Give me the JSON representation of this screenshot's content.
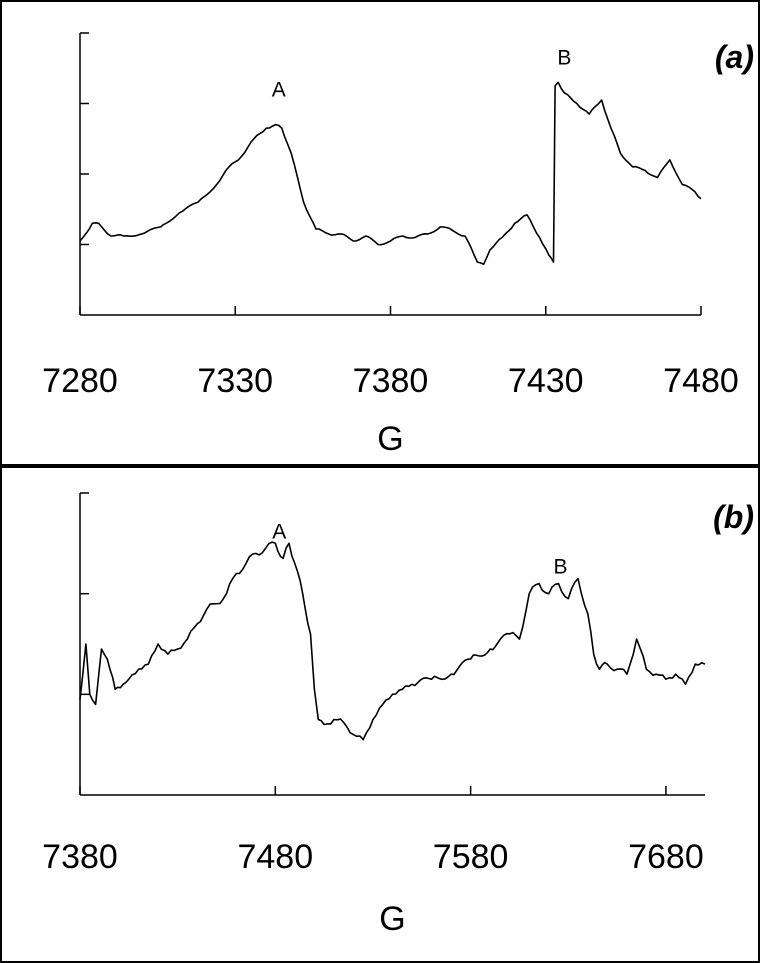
{
  "chart_data": [
    {
      "type": "line",
      "panel_label": "(a)",
      "xlabel": "G",
      "ylabel": "",
      "xlim": [
        7280,
        7480
      ],
      "ylim": [
        0,
        4
      ],
      "grid": false,
      "x_ticks": [
        7280,
        7330,
        7380,
        7430,
        7480
      ],
      "tick_labels": [
        "7280",
        "7330",
        "7380",
        "7430",
        "7480"
      ],
      "y_tick_values": [
        1,
        2,
        3,
        4
      ],
      "annotations": [
        {
          "text": "A",
          "x": 7344,
          "y": 3.1
        },
        {
          "text": "B",
          "x": 7436,
          "y": 3.55
        }
      ],
      "series": [
        {
          "x": [
            7280,
            7284,
            7286,
            7290,
            7294,
            7300,
            7306,
            7312,
            7318,
            7324,
            7328,
            7332,
            7336,
            7340,
            7343,
            7345,
            7348,
            7352,
            7356,
            7360,
            7364,
            7368,
            7372,
            7376,
            7380,
            7384,
            7388,
            7392,
            7396,
            7400,
            7404,
            7406,
            7408,
            7410,
            7412,
            7416,
            7420,
            7424,
            7428,
            7431,
            7432.5,
            7433,
            7434,
            7436,
            7440,
            7444,
            7448,
            7451,
            7454,
            7458,
            7462,
            7466,
            7470,
            7474,
            7478,
            7480
          ],
          "y": [
            1.05,
            1.3,
            1.3,
            1.12,
            1.12,
            1.15,
            1.25,
            1.45,
            1.6,
            1.85,
            2.1,
            2.25,
            2.5,
            2.65,
            2.7,
            2.65,
            2.3,
            1.6,
            1.22,
            1.15,
            1.15,
            1.05,
            1.12,
            1.0,
            1.05,
            1.12,
            1.1,
            1.15,
            1.25,
            1.2,
            1.12,
            0.95,
            0.75,
            0.72,
            0.92,
            1.1,
            1.3,
            1.42,
            1.1,
            0.85,
            0.75,
            3.25,
            3.3,
            3.15,
            3.0,
            2.85,
            3.05,
            2.65,
            2.3,
            2.1,
            2.05,
            1.95,
            2.2,
            1.85,
            1.75,
            1.65
          ]
        }
      ]
    },
    {
      "type": "line",
      "panel_label": "(b)",
      "xlabel": "G",
      "ylabel": "",
      "xlim": [
        7380,
        7700
      ],
      "ylim": [
        0,
        3
      ],
      "grid": false,
      "x_ticks": [
        7380,
        7480,
        7580,
        7680
      ],
      "tick_labels": [
        "7380",
        "7480",
        "7580",
        "7680"
      ],
      "y_tick_values": [
        1,
        2,
        3
      ],
      "annotations": [
        {
          "text": "A",
          "x": 7482,
          "y": 2.55
        },
        {
          "text": "B",
          "x": 7626,
          "y": 2.2
        }
      ],
      "series": [
        {
          "x": [
            7380,
            7383,
            7385,
            7388,
            7391,
            7394,
            7398,
            7402,
            7405,
            7410,
            7415,
            7420,
            7425,
            7430,
            7435,
            7440,
            7445,
            7450,
            7455,
            7460,
            7465,
            7470,
            7475,
            7480,
            7484,
            7487,
            7490,
            7494,
            7498,
            7500,
            7502,
            7505,
            7510,
            7515,
            7520,
            7525,
            7530,
            7535,
            7540,
            7545,
            7550,
            7560,
            7570,
            7580,
            7590,
            7600,
            7605,
            7610,
            7615,
            7620,
            7625,
            7630,
            7635,
            7640,
            7643,
            7646,
            7650,
            7655,
            7660,
            7665,
            7670,
            7675,
            7680,
            7685,
            7690,
            7695,
            7700
          ],
          "y": [
            0.95,
            1.5,
            1.0,
            0.9,
            1.45,
            1.35,
            1.05,
            1.1,
            1.15,
            1.25,
            1.3,
            1.5,
            1.4,
            1.45,
            1.55,
            1.7,
            1.85,
            1.9,
            2.0,
            2.2,
            2.3,
            2.4,
            2.45,
            2.5,
            2.35,
            2.5,
            2.3,
            2.0,
            1.6,
            1.05,
            0.75,
            0.7,
            0.75,
            0.72,
            0.6,
            0.55,
            0.75,
            0.9,
            1.0,
            1.05,
            1.1,
            1.15,
            1.2,
            1.35,
            1.45,
            1.6,
            1.55,
            2.0,
            2.1,
            2.0,
            2.1,
            1.95,
            2.15,
            1.8,
            1.4,
            1.25,
            1.3,
            1.25,
            1.2,
            1.55,
            1.25,
            1.2,
            1.15,
            1.2,
            1.1,
            1.3,
            1.3
          ]
        }
      ]
    }
  ]
}
